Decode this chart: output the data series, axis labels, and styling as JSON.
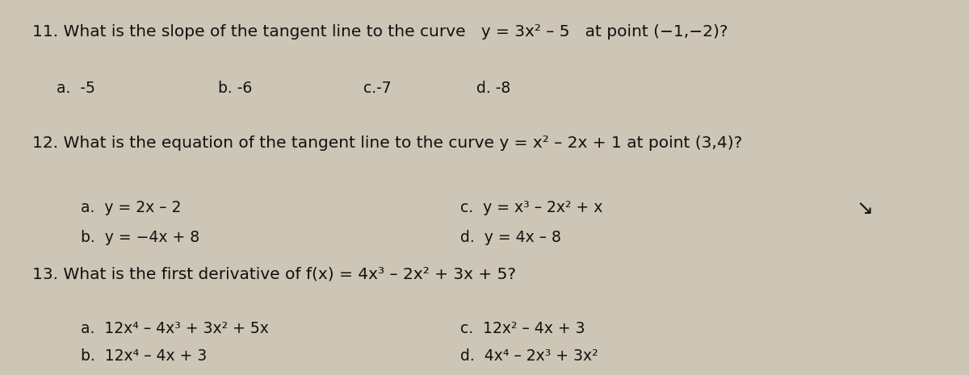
{
  "bg_color": "#cdc5b5",
  "text_color": "#111111",
  "figsize": [
    12.0,
    4.65
  ],
  "dpi": 100,
  "q11_plain": "11. What is the slope of the tangent line to the curve  ",
  "q11_math": "y = 3x² – 5",
  "q11_end": " at point (−1,−2)?",
  "q11_a": "a.  -5",
  "q11_b": "b. -6",
  "q11_c": "c.-7",
  "q11_d": "d. -8",
  "q12_plain": "12. What is the equation of the tangent line to the curve ",
  "q12_math": "y = x² – 2x + 1",
  "q12_end": " at point (3,4)?",
  "q12_a": "a.  y = 2x – 2",
  "q12_b": "b.  y = −4x + 8",
  "q12_c": "c.  y = x³ – 2x² + x",
  "q12_d": "d.  y = 4x – 8",
  "q13_plain": "13. What is the first derivative of ",
  "q13_math": "f(x) = 4x³ – 2x² + 3x + 5",
  "q13_end": "?",
  "q13_a": "a.  12x⁴ – 4x³ + 3x² + 5x",
  "q13_b": "b.  12x⁴ – 4x + 3",
  "q13_c": "c.  12x² – 4x + 3",
  "q13_d": "d.  4x⁴ – 2x³ + 3x²",
  "font_size_question": 14.5,
  "font_size_choice": 13.5
}
